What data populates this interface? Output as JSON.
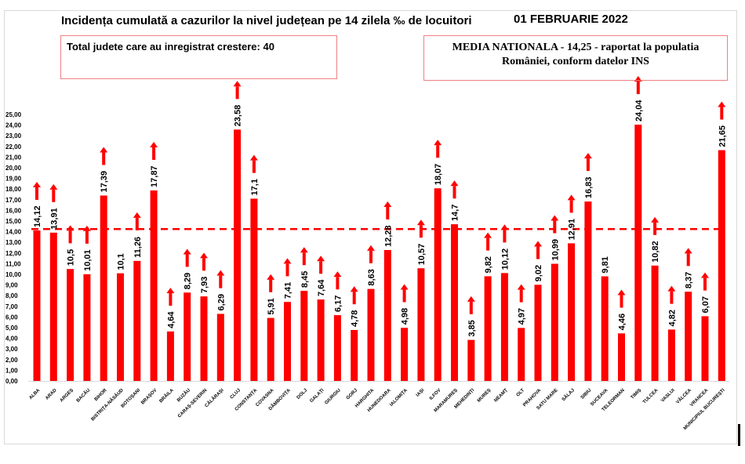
{
  "header": {
    "title": "Incidența cumulată a cazurilor la nivel județean pe 14 zilela ‰ de locuitori",
    "date": "01 FEBRUARIE 2022",
    "total_box": "Total judete care au inregistrat crestere: 40",
    "national_box_line1": "MEDIA NATIONALA - 14,25 -  raportat la populatia",
    "national_box_line2": "României, conform datelor INS"
  },
  "colors": {
    "bar": "#ff0000",
    "reference_line": "#ff0000",
    "box_border": "#f08080"
  },
  "chart_data": {
    "type": "bar",
    "title": "Incidența cumulată a cazurilor la nivel județean pe 14 zilela ‰ de locuitori",
    "xlabel": "",
    "ylabel": "",
    "ylim": [
      0,
      25
    ],
    "ytick_step": 1,
    "ytick_labels": [
      "0,00",
      "1,00",
      "2,00",
      "3,00",
      "4,00",
      "5,00",
      "6,00",
      "7,00",
      "8,00",
      "9,00",
      "10,00",
      "11,00",
      "12,00",
      "13,00",
      "14,00",
      "15,00",
      "16,00",
      "17,00",
      "18,00",
      "19,00",
      "20,00",
      "21,00",
      "22,00",
      "23,00",
      "24,00",
      "25,00"
    ],
    "grid": false,
    "reference_line": {
      "value": 14.25,
      "label": "MEDIA NATIONALA - 14,25",
      "style": "dashed"
    },
    "categories": [
      "ALBA",
      "ARAD",
      "ARGEȘ",
      "BACĂU",
      "BIHOR",
      "BISTRIȚA-NĂSĂUD",
      "BOTOȘANI",
      "BRAȘOV",
      "BRĂILA",
      "BUZĂU",
      "CARAȘ-SEVERIN",
      "CĂLĂRAȘI",
      "CLUJ",
      "CONSTANȚA",
      "COVASNA",
      "DÂMBOVIȚA",
      "DOLJ",
      "GALAȚI",
      "GIURGIU",
      "GORJ",
      "HARGHITA",
      "HUNEDOARA",
      "IALOMIȚA",
      "IAȘI",
      "ILFOV",
      "MARAMUREȘ",
      "MEHEDINȚI",
      "MUREȘ",
      "NEAMȚ",
      "OLT",
      "PRAHOVA",
      "SATU MARE",
      "SĂLAJ",
      "SIBIU",
      "SUCEAVA",
      "TELEORMAN",
      "TIMIȘ",
      "TULCEA",
      "VASLUI",
      "VÂLCEA",
      "VRANCEA",
      "MUNICIPIUL BUCUREȘTI"
    ],
    "values": [
      14.12,
      13.91,
      10.5,
      10.01,
      17.39,
      10.1,
      11.26,
      17.87,
      4.64,
      8.29,
      7.93,
      6.29,
      23.58,
      17.1,
      5.91,
      7.41,
      8.45,
      7.64,
      6.17,
      4.78,
      8.63,
      12.28,
      4.98,
      10.57,
      18.07,
      14.7,
      3.85,
      9.82,
      10.12,
      4.97,
      9.02,
      10.99,
      12.91,
      16.83,
      9.81,
      4.46,
      24.04,
      10.82,
      4.82,
      8.37,
      6.07,
      21.65
    ],
    "data_labels": [
      "14,12",
      "13,91",
      "10,5",
      "10,01",
      "17,39",
      "10,1",
      "11,26",
      "17,87",
      "4,64",
      "8,29",
      "7,93",
      "6,29",
      "23,58",
      "17,1",
      "5,91",
      "7,41",
      "8,45",
      "7,64",
      "6,17",
      "4,78",
      "8,63",
      "12,28",
      "4,98",
      "10,57",
      "18,07",
      "14,7",
      "3,85",
      "9,82",
      "10,12",
      "4,97",
      "9,02",
      "10,99",
      "12,91",
      "16,83",
      "9,81",
      "4,46",
      "24,04",
      "10,82",
      "4,82",
      "8,37",
      "6,07",
      "21,65"
    ],
    "increase_arrow": [
      true,
      true,
      true,
      true,
      true,
      false,
      true,
      true,
      true,
      true,
      true,
      true,
      true,
      true,
      true,
      true,
      true,
      true,
      true,
      true,
      true,
      true,
      true,
      true,
      true,
      true,
      true,
      true,
      true,
      true,
      true,
      true,
      true,
      true,
      false,
      true,
      true,
      true,
      true,
      true,
      true,
      true
    ]
  }
}
